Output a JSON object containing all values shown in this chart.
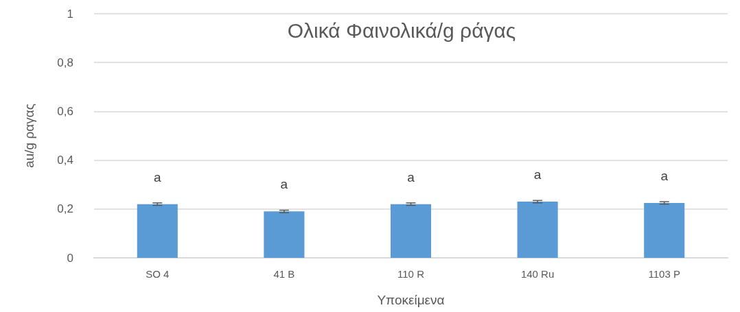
{
  "chart_data": {
    "type": "bar",
    "title": "Ολικά Φαινολικά/g ράγας",
    "xlabel": "Υποκείμενα",
    "ylabel": "au/g ραγας",
    "categories": [
      "SO 4",
      "41 B",
      "110 R",
      "140 Ru",
      "1103 P"
    ],
    "values": [
      0.22,
      0.19,
      0.22,
      0.23,
      0.225
    ],
    "errors": [
      0.005,
      0.005,
      0.005,
      0.005,
      0.005
    ],
    "value_labels": [
      "a",
      "a",
      "a",
      "a",
      "a"
    ],
    "color": "#5b9bd5",
    "ylim": [
      0,
      1
    ],
    "yticks": [
      0,
      {
        "value": 0.2,
        "label": "0,2"
      },
      {
        "value": 0.4,
        "label": "0,4"
      },
      {
        "value": 0.6,
        "label": "0,6"
      },
      {
        "value": 0.8,
        "label": "0,8"
      },
      1
    ],
    "grid": "y"
  }
}
